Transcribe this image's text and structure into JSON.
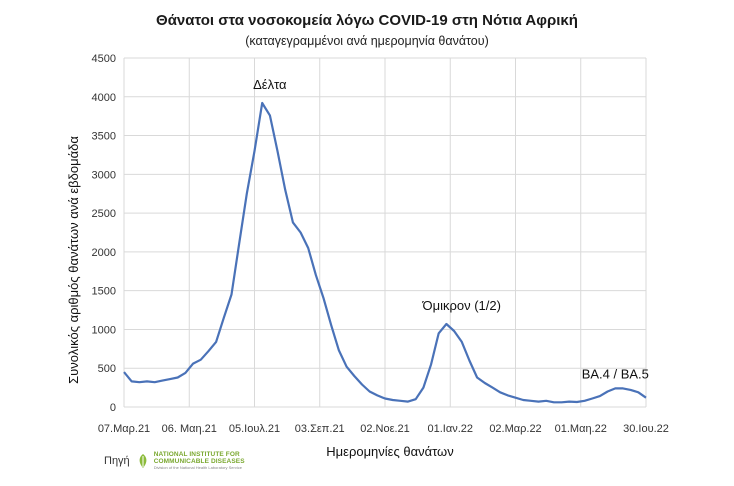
{
  "chart_data": {
    "type": "line",
    "title": "Θάνατοι στα νοσοκομεία λόγω COVID-19 στη Νότια Αφρική",
    "subtitle": "(καταγεγραμμένοι ανά ημερομηνία θανάτου)",
    "xlabel": "Ημερομηνίες θανάτων",
    "ylabel": "Συνολικός αριθμός θανάτων ανά εβδομάδα",
    "ylim": [
      0,
      4500
    ],
    "yticks": [
      "0",
      "500",
      "1000",
      "1500",
      "2000",
      "2500",
      "3000",
      "3500",
      "4000",
      "4500"
    ],
    "grid": true,
    "line_color": "#4a72b8",
    "xticks": [
      {
        "label": "07.Μαρ.21",
        "index": 0
      },
      {
        "label": "06. Μαη.21",
        "index": 8.5
      },
      {
        "label": "05.Ιουλ.21",
        "index": 17
      },
      {
        "label": "03.Σεπ.21",
        "index": 25.5
      },
      {
        "label": "02.Νοε.21",
        "index": 34
      },
      {
        "label": "01.Ιαν.22",
        "index": 42.5
      },
      {
        "label": "02.Μαρ.22",
        "index": 51
      },
      {
        "label": "01.Μαη.22",
        "index": 59.5
      },
      {
        "label": "30.Ιου.22",
        "index": 68
      }
    ],
    "values": [
      450,
      330,
      320,
      330,
      320,
      340,
      360,
      380,
      440,
      560,
      610,
      720,
      840,
      1150,
      1450,
      2100,
      2750,
      3300,
      3920,
      3760,
      3300,
      2800,
      2380,
      2250,
      2050,
      1700,
      1400,
      1050,
      730,
      520,
      400,
      290,
      200,
      150,
      110,
      90,
      80,
      70,
      100,
      250,
      550,
      950,
      1070,
      980,
      840,
      600,
      380,
      310,
      250,
      190,
      150,
      120,
      90,
      80,
      70,
      80,
      60,
      60,
      70,
      65,
      80,
      110,
      140,
      200,
      240,
      240,
      220,
      190,
      120
    ],
    "annotations": [
      {
        "text": "Δέλτα",
        "index": 19,
        "value": 4100
      },
      {
        "text": "Όμικρον (1/2)",
        "index": 44,
        "value": 1250
      },
      {
        "text": "BA.4 / BA.5",
        "index": 64,
        "value": 370
      }
    ]
  },
  "source": {
    "label": "Πηγή",
    "org_name_line1": "NATIONAL INSTITUTE FOR",
    "org_name_line2": "COMMUNICABLE DISEASES",
    "org_sub": "Division of the National Health Laboratory Service"
  }
}
